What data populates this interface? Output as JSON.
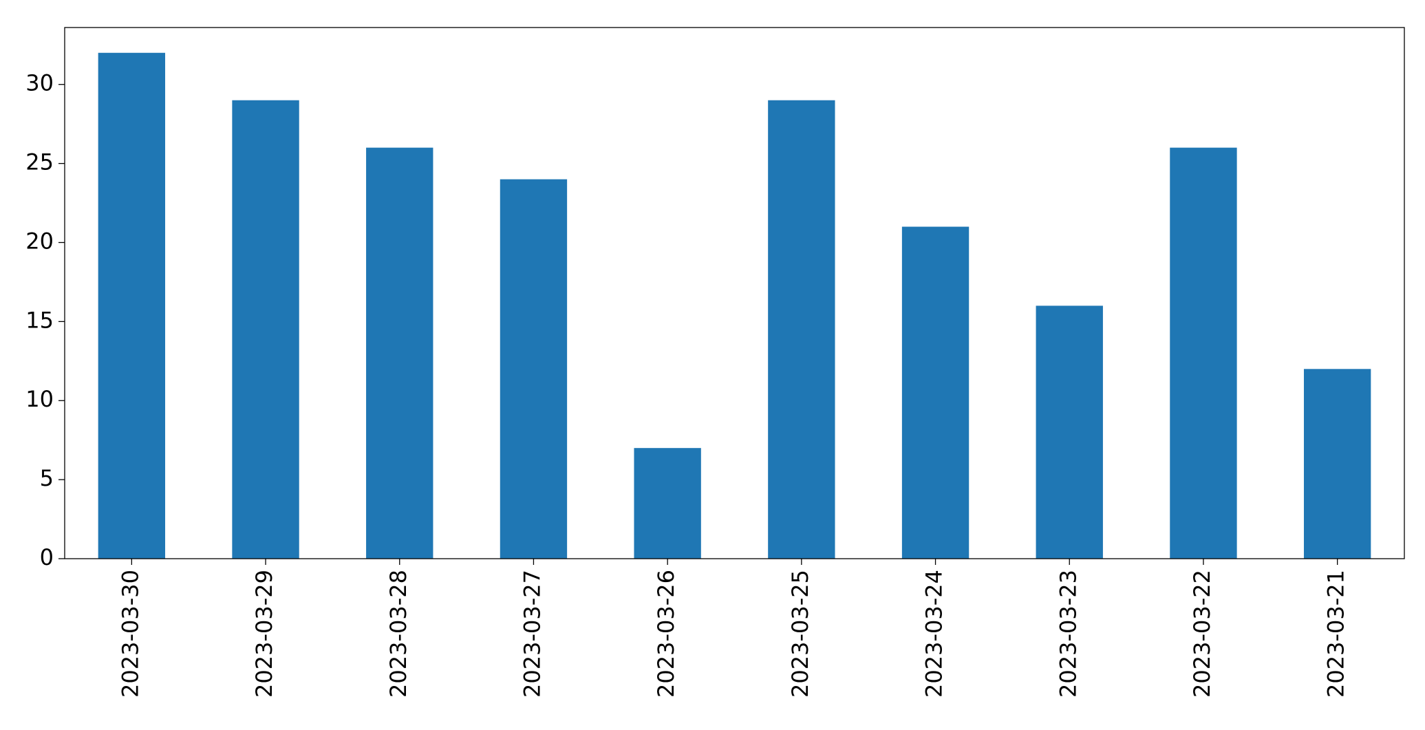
{
  "chart_data": {
    "type": "bar",
    "categories": [
      "2023-03-30",
      "2023-03-29",
      "2023-03-28",
      "2023-03-27",
      "2023-03-26",
      "2023-03-25",
      "2023-03-24",
      "2023-03-23",
      "2023-03-22",
      "2023-03-21"
    ],
    "values": [
      32,
      29,
      26,
      24,
      7,
      29,
      21,
      16,
      26,
      12
    ],
    "color": "#1f77b4",
    "ylim": [
      0,
      33.6
    ],
    "yticks": [
      0,
      5,
      10,
      15,
      20,
      25,
      30
    ],
    "grid": false
  }
}
